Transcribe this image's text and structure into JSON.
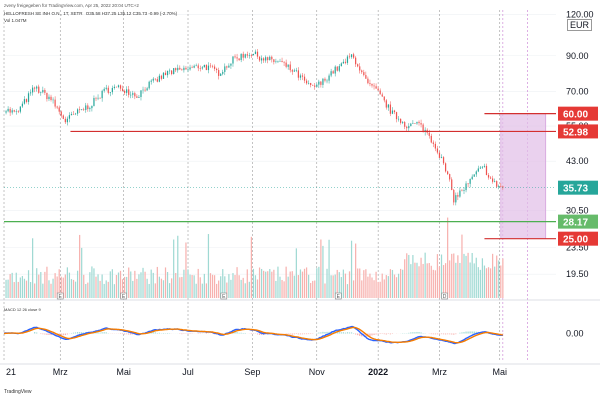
{
  "header": {
    "published_by": "zveny freigegeben für TradingView.com, Apr 25, 2022 20:04 UTC+2",
    "symbol_line": "HELLOFRESH SE INH O.N., 1T, XETR",
    "ohlc": "O35.58  H37.25  L35.12  C35.73  -0.99 (-2.70%)",
    "volume_label": "Vol  1.047M",
    "currency_badge": "EUR",
    "macd_label": "MACD  12  26  close  9",
    "footer_logo": "TradingView"
  },
  "colors": {
    "background": "#ffffff",
    "candle_up": "#26a69a",
    "candle_down": "#ef5350",
    "candle_wick": "#555555",
    "volume_up": "#9fd9d3",
    "volume_down": "#f7b1ae",
    "resistance_line": "#d32f2f",
    "support_line": "#4caf50",
    "target_zone_fill": "#e1bee7",
    "target_zone_border": "#ce93d8",
    "macd_line": "#2962ff",
    "signal_line": "#f57c00",
    "price_badge": "#26a69a",
    "red_badge": "#e53935",
    "green_badge": "#66bb6a"
  },
  "chart_data": {
    "type": "candlestick",
    "title": "HELLOFRESH SE INH O.N., 1T, XETR",
    "y_scale": "log",
    "ylim": [
      16.5,
      124
    ],
    "y_ticks": [
      {
        "value": 120.0,
        "label": "120.00"
      },
      {
        "value": 90.0,
        "label": "90.00"
      },
      {
        "value": 70.0,
        "label": "70.00"
      },
      {
        "value": 55.0,
        "label": "55.00"
      },
      {
        "value": 43.0,
        "label": "43.00"
      },
      {
        "value": 30.5,
        "label": "30.50"
      },
      {
        "value": 23.5,
        "label": "23.50"
      },
      {
        "value": 19.5,
        "label": "19.50"
      }
    ],
    "x_ticks": [
      "2021",
      "Mrz",
      "Mai",
      "Jul",
      "Sep",
      "Nov",
      "2022",
      "Mrz",
      "Mai"
    ],
    "x_tick_labels": [
      "21",
      "Mrz",
      "Mai",
      "Jul",
      "Sep",
      "Nov",
      "2022",
      "Mrz",
      "Mai"
    ],
    "x_tick_day_index": [
      0,
      55,
      117,
      180,
      243,
      306,
      366,
      426,
      485
    ],
    "event_markers": [
      {
        "label": "E",
        "day_index": 55
      },
      {
        "label": "E",
        "day_index": 117
      },
      {
        "label": "E",
        "day_index": 215
      },
      {
        "label": "E",
        "day_index": 327
      },
      {
        "label": "D",
        "day_index": 431
      }
    ],
    "last_price": 35.73,
    "horizontal_lines": [
      {
        "value": 52.98,
        "label": "52.98",
        "color": "red",
        "from_day_index": 65
      },
      {
        "value": 28.17,
        "label": "28.17",
        "color": "green",
        "from_day_index": 0
      }
    ],
    "target_zone": {
      "top": 60.0,
      "bottom": 25.0,
      "top_label": "60.00",
      "bottom_label": "25.00",
      "from_day_index": 486,
      "to_day_index": 530
    },
    "price_path_anchors": [
      [
        0,
        62
      ],
      [
        12,
        60
      ],
      [
        30,
        72
      ],
      [
        45,
        67
      ],
      [
        60,
        57
      ],
      [
        70,
        60
      ],
      [
        85,
        64
      ],
      [
        100,
        71
      ],
      [
        115,
        72
      ],
      [
        130,
        68
      ],
      [
        140,
        73
      ],
      [
        150,
        76
      ],
      [
        160,
        80
      ],
      [
        180,
        82
      ],
      [
        195,
        84
      ],
      [
        210,
        80
      ],
      [
        225,
        88
      ],
      [
        240,
        92
      ],
      [
        255,
        88
      ],
      [
        270,
        86
      ],
      [
        285,
        80
      ],
      [
        300,
        72
      ],
      [
        310,
        74
      ],
      [
        320,
        80
      ],
      [
        330,
        84
      ],
      [
        340,
        90
      ],
      [
        345,
        86
      ],
      [
        355,
        74
      ],
      [
        365,
        70
      ],
      [
        380,
        60
      ],
      [
        395,
        55
      ],
      [
        405,
        56
      ],
      [
        415,
        52
      ],
      [
        425,
        46
      ],
      [
        435,
        38
      ],
      [
        440,
        33
      ],
      [
        448,
        35
      ],
      [
        455,
        37
      ],
      [
        463,
        40
      ],
      [
        470,
        41
      ],
      [
        478,
        37
      ],
      [
        488,
        35.73
      ]
    ],
    "volume_ylim": [
      0,
      2.1
    ],
    "macd_ylim": [
      -13,
      13
    ],
    "macd_tick": {
      "value": 0.0,
      "label": "0.00"
    }
  }
}
